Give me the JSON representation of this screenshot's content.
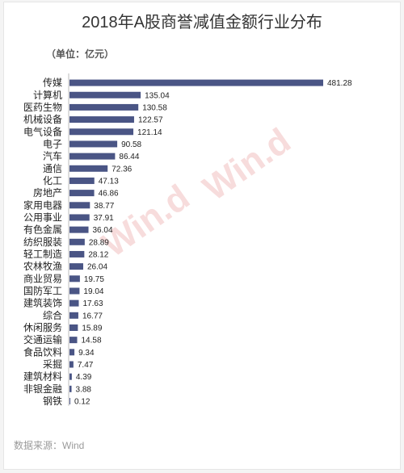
{
  "chart_data": {
    "type": "bar",
    "orientation": "horizontal",
    "title": "2018年A股商誉减值金额行业分布",
    "unit_label": "（单位：亿元）",
    "source": "数据来源：Wind",
    "watermark": "Win.d",
    "categories": [
      "传媒",
      "计算机",
      "医药生物",
      "机械设备",
      "电气设备",
      "电子",
      "汽车",
      "通信",
      "化工",
      "房地产",
      "家用电器",
      "公用事业",
      "有色金属",
      "纺织服装",
      "轻工制造",
      "农林牧渔",
      "商业贸易",
      "国防军工",
      "建筑装饰",
      "综合",
      "休闲服务",
      "交通运输",
      "食品饮料",
      "采掘",
      "建筑材料",
      "非银金融",
      "钢铁"
    ],
    "values": [
      481.28,
      135.04,
      130.58,
      122.57,
      121.14,
      90.58,
      86.44,
      72.36,
      47.13,
      46.86,
      38.77,
      37.91,
      36.04,
      28.89,
      28.12,
      26.04,
      19.75,
      19.04,
      17.63,
      16.77,
      15.89,
      14.58,
      9.34,
      7.47,
      4.39,
      3.88,
      0.12
    ],
    "value_labels": [
      "481.28",
      "135.04",
      "130.58",
      "122.57",
      "121.14",
      "90.58",
      "86.44",
      "72.36",
      "47.13",
      "46.86",
      "38.77",
      "37.91",
      "36.04",
      "28.89",
      "28.12",
      "26.04",
      "19.75",
      "19.04",
      "17.63",
      "16.77",
      "15.89",
      "14.58",
      "9.34",
      "7.47",
      "4.39",
      "3.88",
      "0.12"
    ],
    "xlim": [
      0,
      481.28
    ],
    "grid": false,
    "legend": "none",
    "colors": {
      "bar": "#4a5585",
      "axis": "#bbbbbb",
      "watermark": "#e89a9a"
    }
  }
}
